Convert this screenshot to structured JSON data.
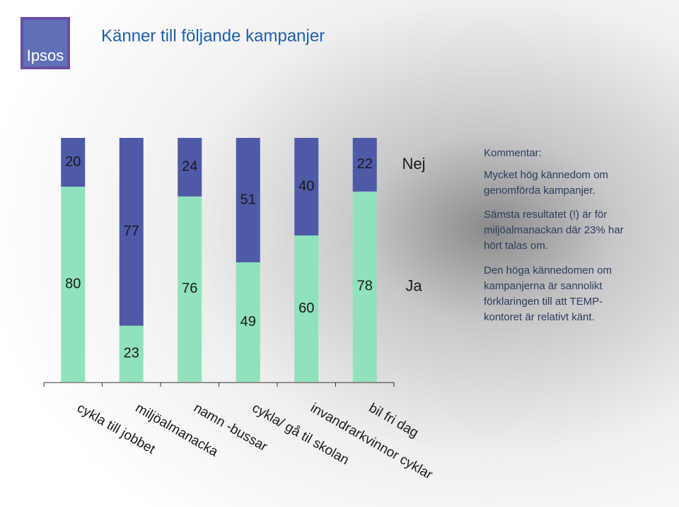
{
  "logo": "Ipsos",
  "chart_data": {
    "type": "bar",
    "stacked": true,
    "title": "Känner till följande kampanjer",
    "categories": [
      "cykla till jobbet",
      "miljöalmanacka",
      "namn -bussar",
      "cykla/ gå til skolan",
      "invandrarkvinnor cyklar",
      "bil fri dag"
    ],
    "series": [
      {
        "name": "Ja",
        "color": "#8fe2bb",
        "values": [
          80,
          23,
          76,
          49,
          60,
          78
        ]
      },
      {
        "name": "Nej",
        "color": "#4f5aa6",
        "values": [
          20,
          77,
          24,
          51,
          40,
          22
        ]
      }
    ]
  },
  "commentary": {
    "heading": "Kommentar:",
    "paragraphs": [
      [
        "Mycket hög kännedom om",
        "genomförda kampanjer."
      ],
      [
        "Sämsta resultatet (!) är för",
        "miljöalmanackan där 23% har",
        "hört talas om."
      ],
      [
        "Den höga kännedomen om",
        "kampanjerna är sannolikt",
        "förklaringen till att TEMP-",
        "kontoret är relativt känt."
      ]
    ]
  }
}
